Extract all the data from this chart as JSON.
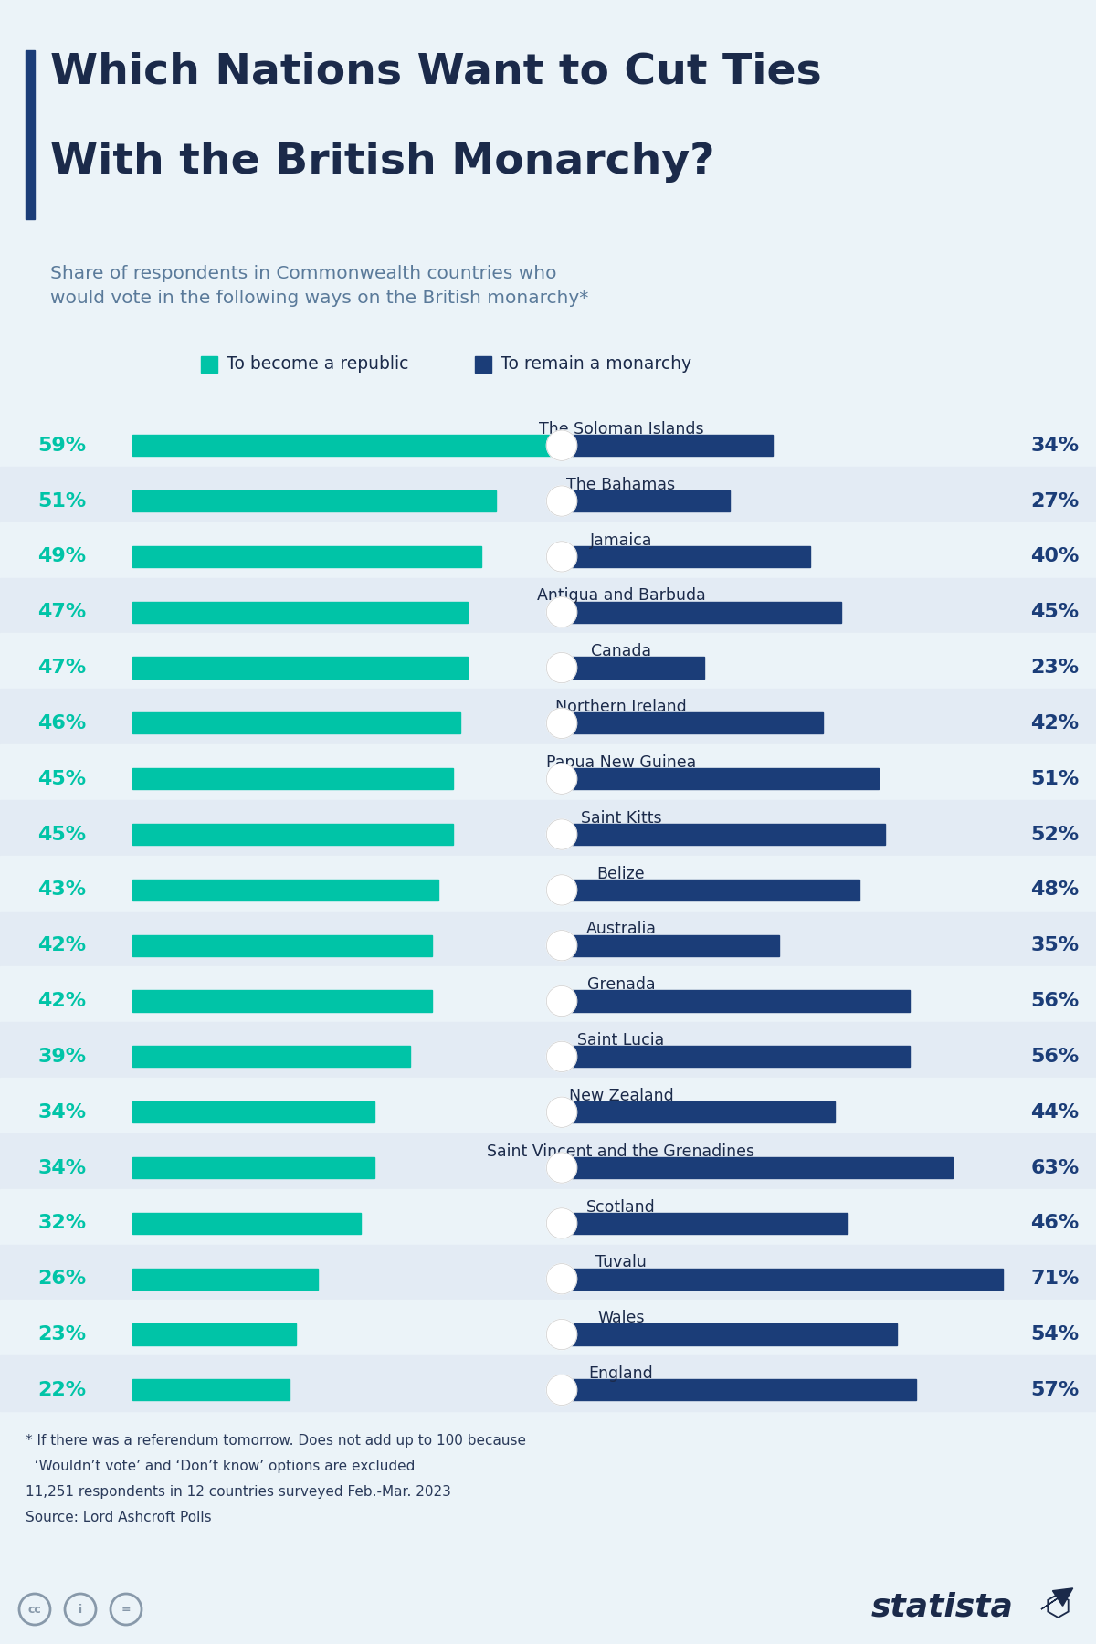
{
  "title_line1": "Which Nations Want to Cut Ties",
  "title_line2": "With the British Monarchy?",
  "subtitle": "Share of respondents in Commonwealth countries who\nwould vote in the following ways on the British monarchy*",
  "legend_republic": "To become a republic",
  "legend_monarchy": "To remain a monarchy",
  "footnote_line1": "* If there was a referendum tomorrow. Does not add up to 100 because",
  "footnote_line2": "  ‘Wouldn’t vote’ and ‘Don’t know’ options are excluded",
  "footnote_line3": "11,251 respondents in 12 countries surveyed Feb.-Mar. 2023",
  "footnote_line4": "Source: Lord Ashcroft Polls",
  "countries": [
    "The Soloman Islands",
    "The Bahamas",
    "Jamaica",
    "Antigua and Barbuda",
    "Canada",
    "Northern Ireland",
    "Papua New Guinea",
    "Saint Kitts",
    "Belize",
    "Australia",
    "Grenada",
    "Saint Lucia",
    "New Zealand",
    "Saint Vincent and the Grenadines",
    "Scotland",
    "Tuvalu",
    "Wales",
    "England"
  ],
  "republic_pct": [
    59,
    51,
    49,
    47,
    47,
    46,
    45,
    45,
    43,
    42,
    42,
    39,
    34,
    34,
    32,
    26,
    23,
    22
  ],
  "monarchy_pct": [
    34,
    27,
    40,
    45,
    23,
    42,
    51,
    52,
    48,
    35,
    56,
    56,
    44,
    63,
    46,
    71,
    54,
    57
  ],
  "bg_color": "#EBF3F8",
  "row_alt_color": "#E3EBF4",
  "row_main_color": "#EBF3F8",
  "republic_color": "#00C4A7",
  "monarchy_color": "#1B3D78",
  "title_color": "#1B2A4A",
  "subtitle_color": "#5A7A9A",
  "left_pct_color": "#00C4A7",
  "right_pct_color": "#1B3D78",
  "country_label_color": "#1B2A4A",
  "accent_bar_color": "#1B3D78",
  "footnote_color": "#2A3A5A",
  "statista_color": "#1B2A4A"
}
